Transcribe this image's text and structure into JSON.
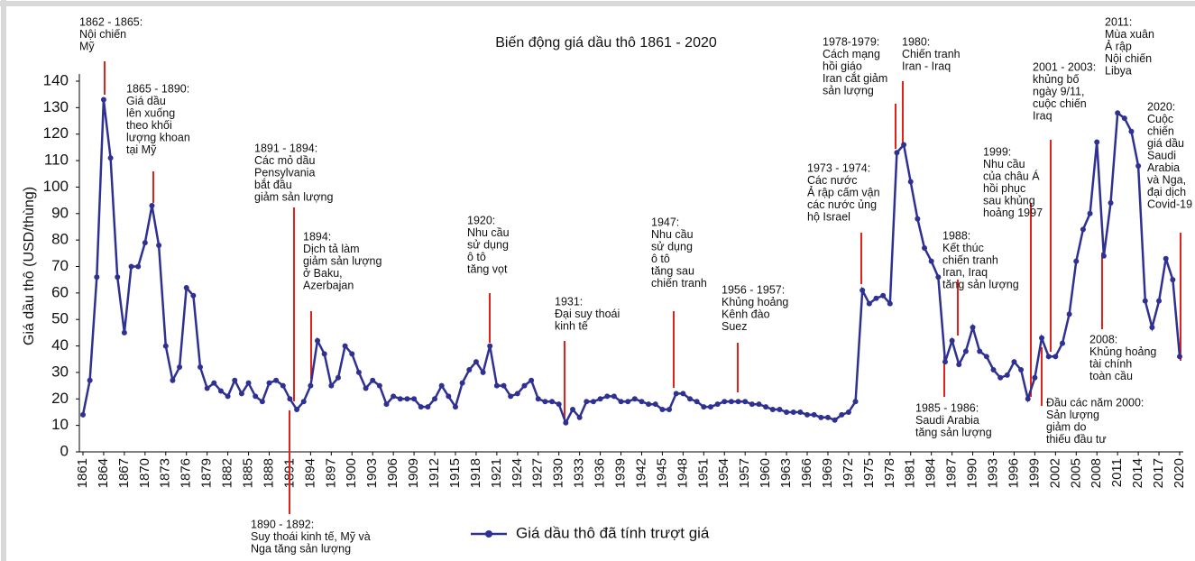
{
  "chart_data": {
    "type": "line",
    "title": "Biến động giá dầu thô 1861 - 2020",
    "y_label": "Giá dầu thô (USD/thùng)",
    "x": [
      1861,
      1862,
      1863,
      1864,
      1865,
      1866,
      1867,
      1868,
      1869,
      1870,
      1871,
      1872,
      1873,
      1874,
      1875,
      1876,
      1877,
      1878,
      1879,
      1880,
      1881,
      1882,
      1883,
      1884,
      1885,
      1886,
      1887,
      1888,
      1889,
      1890,
      1891,
      1892,
      1893,
      1894,
      1895,
      1896,
      1897,
      1898,
      1899,
      1900,
      1901,
      1902,
      1903,
      1904,
      1905,
      1906,
      1907,
      1908,
      1909,
      1910,
      1911,
      1912,
      1913,
      1914,
      1915,
      1916,
      1917,
      1918,
      1919,
      1920,
      1921,
      1922,
      1923,
      1924,
      1925,
      1926,
      1927,
      1928,
      1929,
      1930,
      1931,
      1932,
      1933,
      1934,
      1935,
      1936,
      1937,
      1938,
      1939,
      1940,
      1941,
      1942,
      1943,
      1944,
      1945,
      1946,
      1947,
      1948,
      1949,
      1950,
      1951,
      1952,
      1953,
      1954,
      1955,
      1956,
      1957,
      1958,
      1959,
      1960,
      1961,
      1962,
      1963,
      1964,
      1965,
      1966,
      1967,
      1968,
      1969,
      1970,
      1971,
      1972,
      1973,
      1974,
      1975,
      1976,
      1977,
      1978,
      1979,
      1980,
      1981,
      1982,
      1983,
      1984,
      1985,
      1986,
      1987,
      1988,
      1989,
      1990,
      1991,
      1992,
      1993,
      1994,
      1995,
      1996,
      1997,
      1998,
      1999,
      2000,
      2001,
      2002,
      2003,
      2004,
      2005,
      2006,
      2007,
      2008,
      2009,
      2010,
      2011,
      2012,
      2013,
      2014,
      2015,
      2016,
      2017,
      2018,
      2019,
      2020
    ],
    "series": [
      {
        "name": "Giá dầu thô đã tính trượt giá",
        "color": "#2e3192",
        "values": [
          14,
          27,
          66,
          133,
          111,
          66,
          45,
          70,
          70,
          79,
          93,
          78,
          40,
          27,
          32,
          62,
          59,
          32,
          24,
          26,
          23,
          21,
          27,
          22,
          26,
          21,
          19,
          26,
          27,
          25,
          20,
          16,
          19,
          25,
          42,
          37,
          25,
          28,
          40,
          37,
          30,
          24,
          27,
          25,
          18,
          21,
          20,
          20,
          20,
          17,
          17,
          20,
          25,
          21,
          17,
          26,
          31,
          34,
          30,
          40,
          25,
          25,
          21,
          22,
          25,
          27,
          20,
          19,
          19,
          18,
          11,
          16,
          13,
          19,
          19,
          20,
          21,
          21,
          19,
          19,
          20,
          19,
          18,
          18,
          16,
          16,
          22,
          22,
          20,
          19,
          17,
          17,
          18,
          19,
          19,
          19,
          19,
          18,
          18,
          17,
          16,
          16,
          15,
          15,
          15,
          14,
          14,
          13,
          13,
          12,
          14,
          15,
          19,
          61,
          56,
          58,
          59,
          56,
          113,
          116,
          102,
          88,
          77,
          72,
          66,
          34,
          42,
          33,
          38,
          47,
          38,
          36,
          31,
          28,
          29,
          34,
          31,
          20,
          28,
          43,
          36,
          36,
          41,
          52,
          72,
          84,
          90,
          117,
          74,
          94,
          128,
          126,
          121,
          108,
          57,
          47,
          57,
          73,
          65,
          36
        ]
      }
    ],
    "xlim": [
      1861,
      2020
    ],
    "xticks": [
      1861,
      1864,
      1867,
      1870,
      1873,
      1876,
      1879,
      1882,
      1885,
      1888,
      1891,
      1894,
      1897,
      1900,
      1903,
      1906,
      1909,
      1912,
      1915,
      1918,
      1921,
      1924,
      1927,
      1930,
      1933,
      1936,
      1939,
      1942,
      1945,
      1948,
      1951,
      1954,
      1957,
      1960,
      1963,
      1966,
      1969,
      1972,
      1975,
      1978,
      1981,
      1984,
      1987,
      1990,
      1993,
      1996,
      1999,
      2002,
      2005,
      2008,
      2011,
      2014,
      2017,
      2020
    ],
    "ylim": [
      0,
      140
    ],
    "yticks": [
      0,
      10,
      20,
      30,
      40,
      50,
      60,
      70,
      80,
      90,
      100,
      110,
      120,
      130,
      140
    ],
    "grid": false,
    "legend": "bottom",
    "annotations": [
      {
        "lines": [
          "1862 - 1865:",
          "Nội chiến",
          "Mỹ"
        ]
      },
      {
        "lines": [
          "1865 - 1890:",
          "Giá dầu",
          "lên xuống",
          "theo khối",
          "lượng khoan",
          "tại Mỹ"
        ]
      },
      {
        "lines": [
          "1891 - 1894:",
          "Các mỏ dầu",
          "Pensylvania",
          "bắt đầu",
          "giảm sản lượng"
        ]
      },
      {
        "lines": [
          "1894:",
          "Dịch tả làm",
          "giảm sản lượng",
          "ở Baku,",
          "Azerbajan"
        ]
      },
      {
        "lines": [
          "1890 - 1892:",
          "Suy thoái kinh tế, Mỹ và",
          "Nga tăng sản lượng"
        ]
      },
      {
        "lines": [
          "1920:",
          "Nhu cầu",
          "sử dụng",
          "ô tô",
          "tăng vọt"
        ]
      },
      {
        "lines": [
          "1931:",
          "Đại suy thoái",
          "kinh tế"
        ]
      },
      {
        "lines": [
          "1947:",
          "Nhu cầu",
          "sử dụng",
          "ô tô",
          "tăng sau",
          "chiến tranh"
        ]
      },
      {
        "lines": [
          "1956 - 1957:",
          "Khủng hoảng",
          "Kênh đào",
          "Suez"
        ]
      },
      {
        "lines": [
          "1973 - 1974:",
          "Các nước",
          "Ả rập cấm vận",
          "các nước ủng",
          "hộ Israel"
        ]
      },
      {
        "lines": [
          "1978-1979:",
          "Cách mạng",
          "hồi giáo",
          "Iran cắt giảm",
          "sản lượng"
        ]
      },
      {
        "lines": [
          "1980:",
          "Chiến tranh",
          "Iran - Iraq"
        ]
      },
      {
        "lines": [
          "1985 - 1986:",
          "Saudi Arabia",
          "tăng sản lượng"
        ]
      },
      {
        "lines": [
          "1988:",
          "Kết thúc",
          "chiến tranh",
          "Iran, Iraq",
          "tăng sản lượng"
        ]
      },
      {
        "lines": [
          "1999:",
          "Nhu cầu",
          "của châu Á",
          "hồi phục",
          "sau khủng",
          "hoảng 1997"
        ]
      },
      {
        "lines": [
          "2001 - 2003:",
          "khủng bố",
          "ngày 9/11,",
          "cuộc chiến",
          "Iraq"
        ]
      },
      {
        "lines": [
          "Đầu các năm 2000:",
          "Sản lượng",
          "giảm do",
          "thiếu đầu tư"
        ]
      },
      {
        "lines": [
          "2008:",
          "Khủng hoảng",
          "tài chính",
          "toàn cầu"
        ]
      },
      {
        "lines": [
          "2011:",
          "Mùa xuân",
          "Ả rập",
          "Nội chiến",
          "Libya"
        ]
      },
      {
        "lines": [
          "2020:",
          "Cuộc",
          "chiến",
          "giá dầu",
          "Saudi",
          "Arabia",
          "và Nga,",
          "đại dịch",
          "Covid-19"
        ]
      }
    ]
  }
}
